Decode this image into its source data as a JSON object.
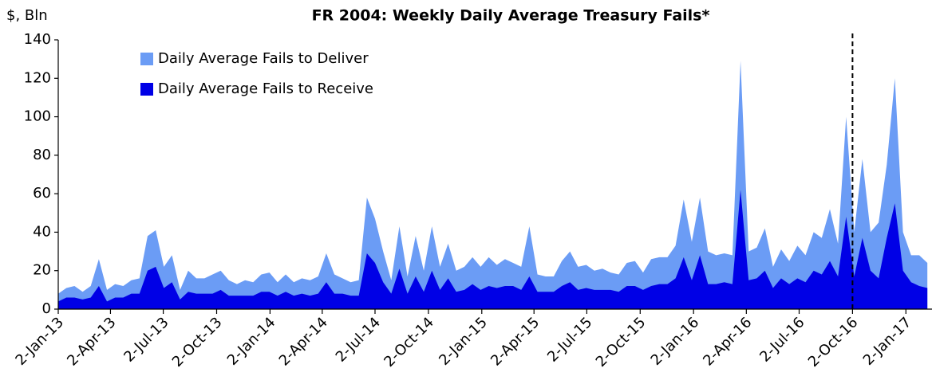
{
  "chart_data": {
    "type": "area",
    "title": "FR 2004: Weekly Daily Average Treasury Fails*",
    "y_label": "$, Bln",
    "x": [
      "2013-01-02",
      "2013-01-16",
      "2013-01-30",
      "2013-02-13",
      "2013-02-27",
      "2013-03-13",
      "2013-03-27",
      "2013-04-10",
      "2013-04-24",
      "2013-05-08",
      "2013-05-22",
      "2013-06-05",
      "2013-06-19",
      "2013-07-03",
      "2013-07-17",
      "2013-07-31",
      "2013-08-14",
      "2013-08-28",
      "2013-09-11",
      "2013-09-25",
      "2013-10-09",
      "2013-10-23",
      "2013-11-06",
      "2013-11-20",
      "2013-12-04",
      "2013-12-18",
      "2014-01-01",
      "2014-01-15",
      "2014-01-29",
      "2014-02-12",
      "2014-02-26",
      "2014-03-12",
      "2014-03-26",
      "2014-04-09",
      "2014-04-23",
      "2014-05-07",
      "2014-05-21",
      "2014-06-04",
      "2014-06-18",
      "2014-07-02",
      "2014-07-16",
      "2014-07-30",
      "2014-08-13",
      "2014-08-27",
      "2014-09-10",
      "2014-09-24",
      "2014-10-08",
      "2014-10-22",
      "2014-11-05",
      "2014-11-19",
      "2014-12-03",
      "2014-12-17",
      "2014-12-31",
      "2015-01-14",
      "2015-01-28",
      "2015-02-11",
      "2015-02-25",
      "2015-03-11",
      "2015-03-25",
      "2015-04-08",
      "2015-04-22",
      "2015-05-06",
      "2015-05-20",
      "2015-06-03",
      "2015-06-17",
      "2015-07-01",
      "2015-07-15",
      "2015-07-29",
      "2015-08-12",
      "2015-08-26",
      "2015-09-09",
      "2015-09-23",
      "2015-10-07",
      "2015-10-21",
      "2015-11-04",
      "2015-11-18",
      "2015-12-02",
      "2015-12-16",
      "2015-12-30",
      "2016-01-13",
      "2016-01-27",
      "2016-02-10",
      "2016-02-24",
      "2016-03-09",
      "2016-03-23",
      "2016-04-06",
      "2016-04-20",
      "2016-05-04",
      "2016-05-18",
      "2016-06-01",
      "2016-06-15",
      "2016-06-29",
      "2016-07-13",
      "2016-07-27",
      "2016-08-10",
      "2016-08-24",
      "2016-09-07",
      "2016-09-21",
      "2016-10-05",
      "2016-10-19",
      "2016-11-02",
      "2016-11-16",
      "2016-11-30",
      "2016-12-14",
      "2016-12-28",
      "2017-01-11",
      "2017-01-25",
      "2017-02-08"
    ],
    "series": [
      {
        "name": "Daily Average Fails to Deliver",
        "color": "#6b9cf5",
        "values": [
          8,
          11,
          12,
          9,
          12,
          26,
          10,
          13,
          12,
          15,
          16,
          38,
          41,
          22,
          28,
          10,
          20,
          16,
          16,
          18,
          20,
          15,
          13,
          15,
          14,
          18,
          19,
          14,
          18,
          14,
          16,
          15,
          17,
          29,
          18,
          16,
          14,
          15,
          58,
          47,
          30,
          15,
          43,
          17,
          38,
          20,
          43,
          22,
          34,
          20,
          22,
          27,
          22,
          27,
          23,
          26,
          24,
          22,
          43,
          18,
          17,
          17,
          25,
          30,
          22,
          23,
          20,
          21,
          19,
          18,
          24,
          25,
          19,
          26,
          27,
          27,
          33,
          57,
          35,
          58,
          30,
          28,
          29,
          28,
          129,
          30,
          32,
          42,
          22,
          31,
          25,
          33,
          28,
          40,
          37,
          52,
          34,
          100,
          40,
          78,
          40,
          45,
          75,
          120,
          40,
          28,
          28,
          24
        ]
      },
      {
        "name": "Daily Average Fails to Receive",
        "color": "#0000e6",
        "values": [
          4,
          6,
          6,
          5,
          6,
          12,
          4,
          6,
          6,
          8,
          8,
          20,
          22,
          11,
          14,
          5,
          9,
          8,
          8,
          8,
          10,
          7,
          7,
          7,
          7,
          9,
          9,
          7,
          9,
          7,
          8,
          7,
          8,
          14,
          8,
          8,
          7,
          7,
          29,
          24,
          14,
          8,
          21,
          8,
          17,
          9,
          20,
          10,
          16,
          9,
          10,
          13,
          10,
          12,
          11,
          12,
          12,
          10,
          17,
          9,
          9,
          9,
          12,
          14,
          10,
          11,
          10,
          10,
          10,
          9,
          12,
          12,
          10,
          12,
          13,
          13,
          16,
          27,
          15,
          28,
          13,
          13,
          14,
          13,
          62,
          15,
          16,
          20,
          11,
          16,
          13,
          16,
          14,
          20,
          18,
          25,
          17,
          48,
          17,
          37,
          20,
          16,
          37,
          55,
          20,
          14,
          12,
          11
        ]
      }
    ],
    "xlim": [
      "2013-01-02",
      "2017-02-16"
    ],
    "xticks": [
      {
        "value": "2013-01-02",
        "label": "2-Jan-13"
      },
      {
        "value": "2013-04-02",
        "label": "2-Apr-13"
      },
      {
        "value": "2013-07-02",
        "label": "2-Jul-13"
      },
      {
        "value": "2013-10-02",
        "label": "2-Oct-13"
      },
      {
        "value": "2014-01-02",
        "label": "2-Jan-14"
      },
      {
        "value": "2014-04-02",
        "label": "2-Apr-14"
      },
      {
        "value": "2014-07-02",
        "label": "2-Jul-14"
      },
      {
        "value": "2014-10-02",
        "label": "2-Oct-14"
      },
      {
        "value": "2015-01-02",
        "label": "2-Jan-15"
      },
      {
        "value": "2015-04-02",
        "label": "2-Apr-15"
      },
      {
        "value": "2015-07-02",
        "label": "2-Jul-15"
      },
      {
        "value": "2015-10-02",
        "label": "2-Oct-15"
      },
      {
        "value": "2016-01-02",
        "label": "2-Jan-16"
      },
      {
        "value": "2016-04-02",
        "label": "2-Apr-16"
      },
      {
        "value": "2016-07-02",
        "label": "2-Jul-16"
      },
      {
        "value": "2016-10-02",
        "label": "2-Oct-16"
      },
      {
        "value": "2017-01-02",
        "label": "2-Jan-17"
      }
    ],
    "ylim": [
      0,
      140
    ],
    "yticks": [
      0,
      20,
      40,
      60,
      80,
      100,
      120,
      140
    ],
    "reference_line_x": "2016-10-02",
    "grid": false,
    "legend": "upper left"
  }
}
